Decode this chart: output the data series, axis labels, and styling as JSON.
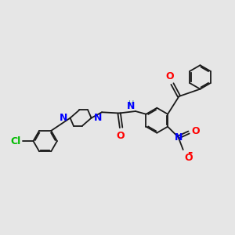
{
  "bg_color": "#e6e6e6",
  "bond_color": "#1a1a1a",
  "nitrogen_color": "#0000ff",
  "oxygen_color": "#ff0000",
  "chlorine_color": "#00bb00",
  "lw": 1.3,
  "figsize": [
    3.0,
    3.0
  ],
  "dpi": 100,
  "xlim": [
    -6.5,
    5.5
  ],
  "ylim": [
    -4.5,
    4.5
  ]
}
